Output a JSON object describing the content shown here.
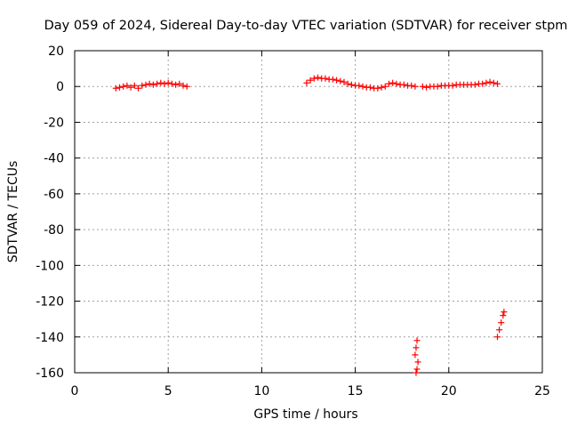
{
  "chart_data": {
    "type": "scatter",
    "title": "Day 059 of 2024, Sidereal Day-to-day VTEC variation (SDTVAR) for receiver stpm",
    "xlabel": "GPS time / hours",
    "ylabel": "SDTVAR / TECUs",
    "xlim": [
      0,
      25
    ],
    "ylim": [
      -160,
      20
    ],
    "xticks": [
      "0",
      "5",
      "10",
      "15",
      "20",
      "25"
    ],
    "yticks": [
      "20",
      "0",
      "-20",
      "-40",
      "-60",
      "-80",
      "-100",
      "-120",
      "-140",
      "-160"
    ],
    "grid": true,
    "marker_color": "#ff0000",
    "series": [
      {
        "points": [
          [
            2.2,
            -1
          ],
          [
            2.4,
            -0.5
          ],
          [
            2.6,
            0
          ],
          [
            2.8,
            0.5
          ],
          [
            3.0,
            -0.5
          ],
          [
            3.2,
            0.5
          ],
          [
            3.4,
            -1
          ],
          [
            3.6,
            0.5
          ],
          [
            3.8,
            1
          ],
          [
            4.0,
            1.5
          ],
          [
            4.2,
            1
          ],
          [
            4.4,
            1.5
          ],
          [
            4.6,
            2
          ],
          [
            4.8,
            1.5
          ],
          [
            5.0,
            2
          ],
          [
            5.2,
            1.5
          ],
          [
            5.4,
            1
          ],
          [
            5.6,
            1.5
          ],
          [
            5.8,
            0.5
          ],
          [
            6.0,
            0
          ],
          [
            12.4,
            2
          ],
          [
            12.6,
            3.5
          ],
          [
            12.8,
            4.5
          ],
          [
            13.0,
            5
          ],
          [
            13.2,
            4.5
          ],
          [
            13.4,
            4.5
          ],
          [
            13.6,
            4
          ],
          [
            13.8,
            4
          ],
          [
            14.0,
            3.5
          ],
          [
            14.2,
            3
          ],
          [
            14.4,
            2.5
          ],
          [
            14.6,
            1.5
          ],
          [
            14.8,
            1
          ],
          [
            15.0,
            0.5
          ],
          [
            15.2,
            0.5
          ],
          [
            15.4,
            0
          ],
          [
            15.6,
            -0.5
          ],
          [
            15.8,
            -0.5
          ],
          [
            16.0,
            -1
          ],
          [
            16.2,
            -1
          ],
          [
            16.4,
            -0.5
          ],
          [
            16.6,
            0
          ],
          [
            16.8,
            1.5
          ],
          [
            17.0,
            2
          ],
          [
            17.2,
            1.5
          ],
          [
            17.4,
            1
          ],
          [
            17.6,
            1
          ],
          [
            17.8,
            0.5
          ],
          [
            18.0,
            0.5
          ],
          [
            18.2,
            0
          ],
          [
            18.6,
            0
          ],
          [
            18.8,
            -0.5
          ],
          [
            19.0,
            0
          ],
          [
            19.2,
            0
          ],
          [
            19.4,
            0
          ],
          [
            19.6,
            0.5
          ],
          [
            19.8,
            0.5
          ],
          [
            20.0,
            0.5
          ],
          [
            20.2,
            0.5
          ],
          [
            20.4,
            1
          ],
          [
            20.6,
            1
          ],
          [
            20.8,
            1
          ],
          [
            21.0,
            1
          ],
          [
            21.2,
            1
          ],
          [
            21.4,
            1
          ],
          [
            21.6,
            1.5
          ],
          [
            21.8,
            1.5
          ],
          [
            22.0,
            2
          ],
          [
            22.2,
            2.5
          ],
          [
            22.4,
            2
          ],
          [
            22.6,
            1.5
          ],
          [
            18.3,
            -142
          ],
          [
            18.25,
            -146
          ],
          [
            18.2,
            -150
          ],
          [
            18.35,
            -154
          ],
          [
            18.3,
            -158
          ],
          [
            18.25,
            -160
          ],
          [
            22.6,
            -140
          ],
          [
            22.7,
            -136
          ],
          [
            22.8,
            -132
          ],
          [
            22.9,
            -128
          ],
          [
            22.95,
            -126
          ]
        ]
      }
    ]
  }
}
